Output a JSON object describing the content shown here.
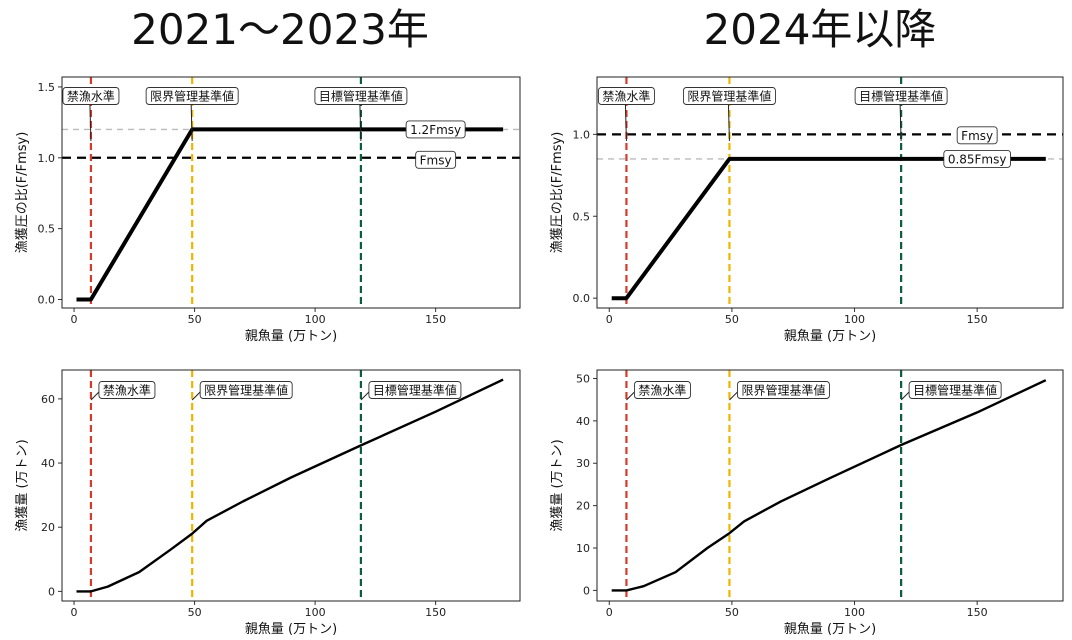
{
  "titles": {
    "left": "2021～2023年",
    "right": "2024年以降"
  },
  "colors": {
    "ban": "#d33b2b",
    "limit": "#f0b400",
    "target": "#0b5e3a",
    "grey_ref": "#bbbbbb",
    "line": "#000000"
  },
  "chart_data": [
    {
      "type": "line",
      "panel": "top-left",
      "xlabel": "親魚量 (万トン)",
      "ylabel": "漁獲圧の比(F/Fmsy)",
      "xlim": [
        -5,
        185
      ],
      "ylim": [
        -0.06,
        1.57
      ],
      "xticks": [
        0,
        50,
        100,
        150
      ],
      "yticks": [
        0.0,
        0.5,
        1.0,
        1.5
      ],
      "ytick_labels": [
        "0.0",
        "0.5",
        "1.0",
        "1.5"
      ],
      "series": [
        {
          "x": [
            1,
            7,
            49,
            178
          ],
          "y": [
            0,
            0,
            1.2,
            1.2
          ]
        }
      ],
      "vlines": [
        {
          "x": 7,
          "label": "禁漁水準",
          "color": "#d33b2b"
        },
        {
          "x": 49,
          "label": "限界管理基準値",
          "color": "#f0b400"
        },
        {
          "x": 119,
          "label": "目標管理基準値",
          "color": "#0b5e3a"
        }
      ],
      "hlines": [
        {
          "y": 1.2,
          "label": "1.2Fmsy",
          "style": "grey-dash"
        },
        {
          "y": 1.0,
          "label": "Fmsy",
          "style": "black-dash"
        }
      ]
    },
    {
      "type": "line",
      "panel": "top-right",
      "xlabel": "親魚量 (万トン)",
      "ylabel": "漁獲圧の比(F/Fmsy)",
      "xlim": [
        -5,
        185
      ],
      "ylim": [
        -0.06,
        1.35
      ],
      "xticks": [
        0,
        50,
        100,
        150
      ],
      "yticks": [
        0.0,
        0.5,
        1.0
      ],
      "ytick_labels": [
        "0.0",
        "0.5",
        "1.0"
      ],
      "series": [
        {
          "x": [
            1,
            7,
            49,
            178
          ],
          "y": [
            0,
            0,
            0.85,
            0.85
          ]
        }
      ],
      "vlines": [
        {
          "x": 7,
          "label": "禁漁水準",
          "color": "#d33b2b"
        },
        {
          "x": 49,
          "label": "限界管理基準値",
          "color": "#f0b400"
        },
        {
          "x": 119,
          "label": "目標管理基準値",
          "color": "#0b5e3a"
        }
      ],
      "hlines": [
        {
          "y": 1.0,
          "label": "Fmsy",
          "style": "black-dash"
        },
        {
          "y": 0.85,
          "label": "0.85Fmsy",
          "style": "grey-dash"
        }
      ]
    },
    {
      "type": "line",
      "panel": "bottom-left",
      "xlabel": "親魚量 (万トン)",
      "ylabel": "漁獲量 (万トン)",
      "xlim": [
        -5,
        185
      ],
      "ylim": [
        -3,
        69
      ],
      "xticks": [
        0,
        50,
        100,
        150
      ],
      "yticks": [
        0,
        20,
        40,
        60
      ],
      "ytick_labels": [
        "0",
        "20",
        "40",
        "60"
      ],
      "series": [
        {
          "x": [
            1,
            7,
            14,
            27,
            40,
            49,
            55,
            70,
            90,
            119,
            150,
            178
          ],
          "y": [
            0,
            0,
            1.5,
            6,
            13,
            18,
            22,
            28,
            35.5,
            45.5,
            56,
            66
          ]
        }
      ],
      "vlines": [
        {
          "x": 7,
          "label": "禁漁水準",
          "color": "#d33b2b"
        },
        {
          "x": 49,
          "label": "限界管理基準値",
          "color": "#f0b400"
        },
        {
          "x": 119,
          "label": "目標管理基準値",
          "color": "#0b5e3a"
        }
      ],
      "hlines": []
    },
    {
      "type": "line",
      "panel": "bottom-right",
      "xlabel": "親魚量 (万トン)",
      "ylabel": "漁獲量 (万トン)",
      "xlim": [
        -5,
        185
      ],
      "ylim": [
        -2.5,
        52
      ],
      "xticks": [
        0,
        50,
        100,
        150
      ],
      "yticks": [
        0,
        10,
        20,
        30,
        40,
        50
      ],
      "ytick_labels": [
        "0",
        "10",
        "20",
        "30",
        "40",
        "50"
      ],
      "series": [
        {
          "x": [
            1,
            7,
            14,
            27,
            40,
            49,
            55,
            70,
            90,
            119,
            150,
            178
          ],
          "y": [
            0,
            0,
            1,
            4.3,
            10,
            13.5,
            16.3,
            21,
            26.5,
            34.3,
            42,
            49.6
          ]
        }
      ],
      "vlines": [
        {
          "x": 7,
          "label": "禁漁水準",
          "color": "#d33b2b"
        },
        {
          "x": 49,
          "label": "限界管理基準値",
          "color": "#f0b400"
        },
        {
          "x": 119,
          "label": "目標管理基準値",
          "color": "#0b5e3a"
        }
      ],
      "hlines": []
    }
  ]
}
